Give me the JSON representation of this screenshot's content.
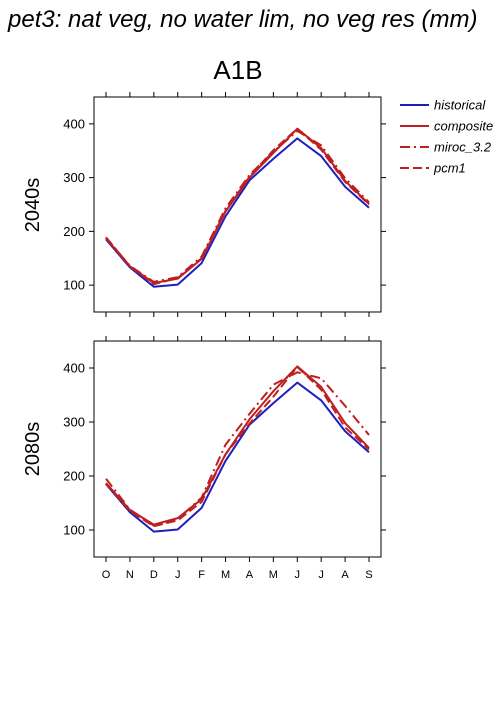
{
  "header": {
    "title": "pet3: nat veg, no water lim, no veg res (mm)",
    "scenario": "A1B"
  },
  "colors": {
    "historical": "#1f1fbf",
    "projection": "#c01f1f"
  },
  "legend": [
    {
      "label": "historical",
      "dash": "solid",
      "color": "#1f1fbf"
    },
    {
      "label": "composite",
      "dash": "solid",
      "color": "#c01f1f"
    },
    {
      "label": "miroc_3.2",
      "dash": "dashdot",
      "color": "#c01f1f"
    },
    {
      "label": "pcm1",
      "dash": "dashed",
      "color": "#c01f1f"
    }
  ],
  "chart_data": [
    {
      "type": "line",
      "panel": "2040s",
      "categories": [
        "O",
        "N",
        "D",
        "J",
        "F",
        "M",
        "A",
        "M",
        "J",
        "J",
        "A",
        "S"
      ],
      "ylim": [
        50,
        450
      ],
      "yticks": [
        100,
        200,
        300,
        400
      ],
      "grid": false,
      "legend_position": "right",
      "series": [
        {
          "name": "historical",
          "dash": "solid",
          "color": "#1f1fbf",
          "values": [
            185,
            133,
            97,
            101,
            141,
            228,
            295,
            335,
            373,
            340,
            283,
            244
          ]
        },
        {
          "name": "composite",
          "dash": "solid",
          "color": "#c01f1f",
          "values": [
            187,
            135,
            104,
            112,
            149,
            237,
            300,
            346,
            391,
            355,
            294,
            251
          ]
        },
        {
          "name": "miroc_3.2",
          "dash": "dashdot",
          "color": "#c01f1f",
          "values": [
            188,
            136,
            106,
            115,
            153,
            243,
            305,
            348,
            387,
            360,
            299,
            254
          ]
        },
        {
          "name": "pcm1",
          "dash": "dashed",
          "color": "#c01f1f",
          "values": [
            189,
            135,
            102,
            113,
            150,
            238,
            302,
            351,
            391,
            352,
            292,
            250
          ]
        }
      ]
    },
    {
      "type": "line",
      "panel": "2080s",
      "categories": [
        "O",
        "N",
        "D",
        "J",
        "F",
        "M",
        "A",
        "M",
        "J",
        "J",
        "A",
        "S"
      ],
      "ylim": [
        50,
        450
      ],
      "yticks": [
        100,
        200,
        300,
        400
      ],
      "grid": false,
      "legend_position": "right",
      "series": [
        {
          "name": "historical",
          "dash": "solid",
          "color": "#1f1fbf",
          "values": [
            185,
            133,
            97,
            101,
            141,
            228,
            295,
            335,
            373,
            340,
            283,
            244
          ]
        },
        {
          "name": "composite",
          "dash": "solid",
          "color": "#c01f1f",
          "values": [
            187,
            137,
            110,
            122,
            157,
            240,
            305,
            357,
            403,
            365,
            298,
            252
          ]
        },
        {
          "name": "miroc_3.2",
          "dash": "dashdot",
          "color": "#c01f1f",
          "values": [
            195,
            138,
            108,
            120,
            160,
            258,
            315,
            369,
            392,
            381,
            330,
            276
          ]
        },
        {
          "name": "pcm1",
          "dash": "dashed",
          "color": "#c01f1f",
          "values": [
            186,
            135,
            107,
            118,
            152,
            240,
            297,
            347,
            402,
            360,
            290,
            249
          ]
        }
      ]
    }
  ]
}
